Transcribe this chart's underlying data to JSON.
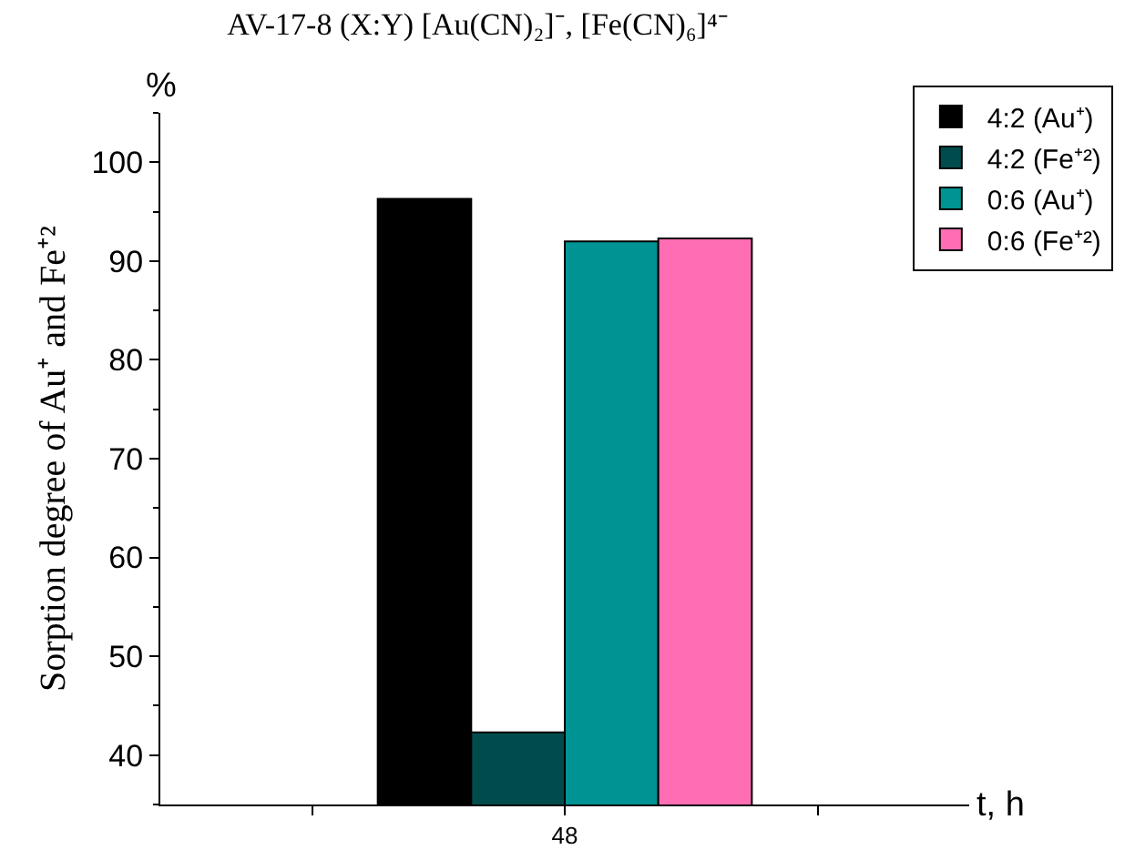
{
  "chart_data": {
    "type": "bar",
    "title": "AV-17-8 (X:Y) [Au(CN)₂]⁻, [Fe(CN)₆]⁴⁻",
    "xlabel": "t, h",
    "ylabel": "Sorption degree of Au⁺ and Fe⁺²",
    "annotations": [
      "%"
    ],
    "categories": [
      "48"
    ],
    "series": [
      {
        "name": "4:2 (Au⁺)",
        "color": "#000000",
        "values": [
          96.3
        ]
      },
      {
        "name": "4:2 (Fe⁺²)",
        "color": "#004c4c",
        "values": [
          42.3
        ]
      },
      {
        "name": "0:6 (Au⁺)",
        "color": "#009393",
        "values": [
          92.0
        ]
      },
      {
        "name": "0:6 (Fe⁺²)",
        "color": "#ff6eb4",
        "values": [
          92.3
        ]
      }
    ],
    "ylim": [
      35,
      105
    ],
    "yticks": [
      40,
      50,
      60,
      70,
      80,
      90,
      100
    ],
    "grid": false,
    "legend": "top right"
  }
}
